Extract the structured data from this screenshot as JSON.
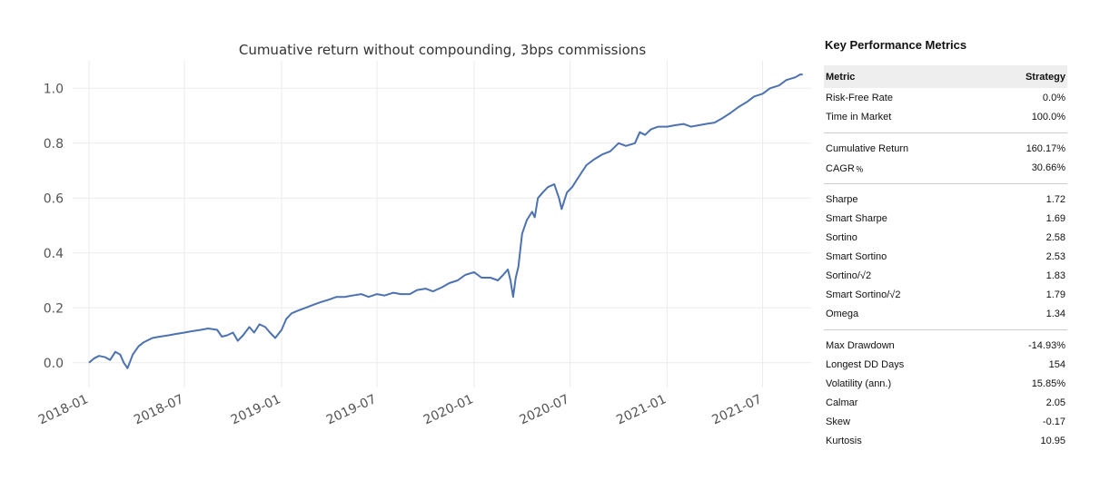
{
  "chart_data": {
    "type": "line",
    "title": "Cumuative return without compounding, 3bps commissions",
    "xlabel": "",
    "ylabel": "",
    "xlim": [
      "2017-12-01",
      "2021-10-01"
    ],
    "ylim": [
      -0.09,
      1.1
    ],
    "yticks": [
      0.0,
      0.2,
      0.4,
      0.6,
      0.8,
      1.0
    ],
    "ytick_labels": [
      "0.0",
      "0.2",
      "0.4",
      "0.6",
      "0.8",
      "1.0"
    ],
    "xticks": [
      "2018-01",
      "2018-07",
      "2019-01",
      "2019-07",
      "2020-01",
      "2020-07",
      "2021-01",
      "2021-07"
    ],
    "grid": true,
    "legend": "none",
    "series": [
      {
        "color": "#4c72b0",
        "points": [
          [
            "2018-01-01",
            0.0
          ],
          [
            "2018-01-10",
            0.015
          ],
          [
            "2018-01-20",
            0.025
          ],
          [
            "2018-02-01",
            0.02
          ],
          [
            "2018-02-10",
            0.01
          ],
          [
            "2018-02-20",
            0.04
          ],
          [
            "2018-03-01",
            0.03
          ],
          [
            "2018-03-08",
            0.0
          ],
          [
            "2018-03-15",
            -0.02
          ],
          [
            "2018-03-25",
            0.03
          ],
          [
            "2018-04-05",
            0.06
          ],
          [
            "2018-04-15",
            0.075
          ],
          [
            "2018-05-01",
            0.09
          ],
          [
            "2018-05-15",
            0.095
          ],
          [
            "2018-06-01",
            0.1
          ],
          [
            "2018-06-15",
            0.105
          ],
          [
            "2018-07-01",
            0.11
          ],
          [
            "2018-07-15",
            0.115
          ],
          [
            "2018-08-01",
            0.12
          ],
          [
            "2018-08-15",
            0.125
          ],
          [
            "2018-09-01",
            0.12
          ],
          [
            "2018-09-10",
            0.095
          ],
          [
            "2018-09-20",
            0.1
          ],
          [
            "2018-10-01",
            0.11
          ],
          [
            "2018-10-10",
            0.08
          ],
          [
            "2018-10-20",
            0.1
          ],
          [
            "2018-11-01",
            0.13
          ],
          [
            "2018-11-10",
            0.11
          ],
          [
            "2018-11-20",
            0.14
          ],
          [
            "2018-12-01",
            0.13
          ],
          [
            "2018-12-10",
            0.11
          ],
          [
            "2018-12-20",
            0.09
          ],
          [
            "2019-01-01",
            0.12
          ],
          [
            "2019-01-10",
            0.16
          ],
          [
            "2019-01-20",
            0.18
          ],
          [
            "2019-02-01",
            0.19
          ],
          [
            "2019-02-15",
            0.2
          ],
          [
            "2019-03-01",
            0.21
          ],
          [
            "2019-03-15",
            0.22
          ],
          [
            "2019-04-01",
            0.23
          ],
          [
            "2019-04-15",
            0.24
          ],
          [
            "2019-05-01",
            0.24
          ],
          [
            "2019-05-15",
            0.245
          ],
          [
            "2019-06-01",
            0.25
          ],
          [
            "2019-06-15",
            0.24
          ],
          [
            "2019-07-01",
            0.25
          ],
          [
            "2019-07-15",
            0.245
          ],
          [
            "2019-08-01",
            0.255
          ],
          [
            "2019-08-15",
            0.25
          ],
          [
            "2019-09-01",
            0.25
          ],
          [
            "2019-09-15",
            0.265
          ],
          [
            "2019-10-01",
            0.27
          ],
          [
            "2019-10-15",
            0.26
          ],
          [
            "2019-11-01",
            0.275
          ],
          [
            "2019-11-15",
            0.29
          ],
          [
            "2019-12-01",
            0.3
          ],
          [
            "2019-12-15",
            0.32
          ],
          [
            "2020-01-01",
            0.33
          ],
          [
            "2020-01-15",
            0.31
          ],
          [
            "2020-02-01",
            0.31
          ],
          [
            "2020-02-15",
            0.3
          ],
          [
            "2020-02-25",
            0.32
          ],
          [
            "2020-03-05",
            0.34
          ],
          [
            "2020-03-10",
            0.3
          ],
          [
            "2020-03-15",
            0.24
          ],
          [
            "2020-03-20",
            0.31
          ],
          [
            "2020-03-25",
            0.35
          ],
          [
            "2020-04-01",
            0.47
          ],
          [
            "2020-04-10",
            0.52
          ],
          [
            "2020-04-20",
            0.55
          ],
          [
            "2020-04-25",
            0.53
          ],
          [
            "2020-05-01",
            0.6
          ],
          [
            "2020-05-10",
            0.62
          ],
          [
            "2020-05-20",
            0.64
          ],
          [
            "2020-06-01",
            0.65
          ],
          [
            "2020-06-10",
            0.6
          ],
          [
            "2020-06-15",
            0.56
          ],
          [
            "2020-06-25",
            0.62
          ],
          [
            "2020-07-05",
            0.64
          ],
          [
            "2020-07-15",
            0.67
          ],
          [
            "2020-08-01",
            0.72
          ],
          [
            "2020-08-15",
            0.74
          ],
          [
            "2020-09-01",
            0.76
          ],
          [
            "2020-09-15",
            0.77
          ],
          [
            "2020-10-01",
            0.8
          ],
          [
            "2020-10-15",
            0.79
          ],
          [
            "2020-11-01",
            0.8
          ],
          [
            "2020-11-10",
            0.84
          ],
          [
            "2020-11-20",
            0.83
          ],
          [
            "2020-12-01",
            0.85
          ],
          [
            "2020-12-15",
            0.86
          ],
          [
            "2021-01-01",
            0.86
          ],
          [
            "2021-01-15",
            0.865
          ],
          [
            "2021-02-01",
            0.87
          ],
          [
            "2021-02-15",
            0.86
          ],
          [
            "2021-03-01",
            0.865
          ],
          [
            "2021-03-15",
            0.87
          ],
          [
            "2021-04-01",
            0.875
          ],
          [
            "2021-04-15",
            0.89
          ],
          [
            "2021-05-01",
            0.91
          ],
          [
            "2021-05-15",
            0.93
          ],
          [
            "2021-06-01",
            0.95
          ],
          [
            "2021-06-15",
            0.97
          ],
          [
            "2021-07-01",
            0.98
          ],
          [
            "2021-07-15",
            1.0
          ],
          [
            "2021-08-01",
            1.01
          ],
          [
            "2021-08-15",
            1.03
          ],
          [
            "2021-09-01",
            1.04
          ],
          [
            "2021-09-10",
            1.05
          ],
          [
            "2021-09-15",
            1.05
          ]
        ]
      }
    ]
  },
  "metrics": {
    "title": "Key Performance Metrics",
    "header": {
      "metric": "Metric",
      "strategy": "Strategy"
    },
    "groups": [
      [
        {
          "label": "Risk-Free Rate",
          "value": "0.0%"
        },
        {
          "label": "Time in Market",
          "value": "100.0%"
        }
      ],
      [
        {
          "label": "Cumulative Return",
          "value": "160.17%"
        },
        {
          "label": "CAGR﹪",
          "value": "30.66%"
        }
      ],
      [
        {
          "label": "Sharpe",
          "value": "1.72"
        },
        {
          "label": "Smart Sharpe",
          "value": "1.69"
        },
        {
          "label": "Sortino",
          "value": "2.58"
        },
        {
          "label": "Smart Sortino",
          "value": "2.53"
        },
        {
          "label": "Sortino/√2",
          "value": "1.83"
        },
        {
          "label": "Smart Sortino/√2",
          "value": "1.79"
        },
        {
          "label": "Omega",
          "value": "1.34"
        }
      ],
      [
        {
          "label": "Max Drawdown",
          "value": "-14.93%"
        },
        {
          "label": "Longest DD Days",
          "value": "154"
        },
        {
          "label": "Volatility (ann.)",
          "value": "15.85%"
        },
        {
          "label": "Calmar",
          "value": "2.05"
        },
        {
          "label": "Skew",
          "value": "-0.17"
        },
        {
          "label": "Kurtosis",
          "value": "10.95"
        }
      ]
    ]
  }
}
